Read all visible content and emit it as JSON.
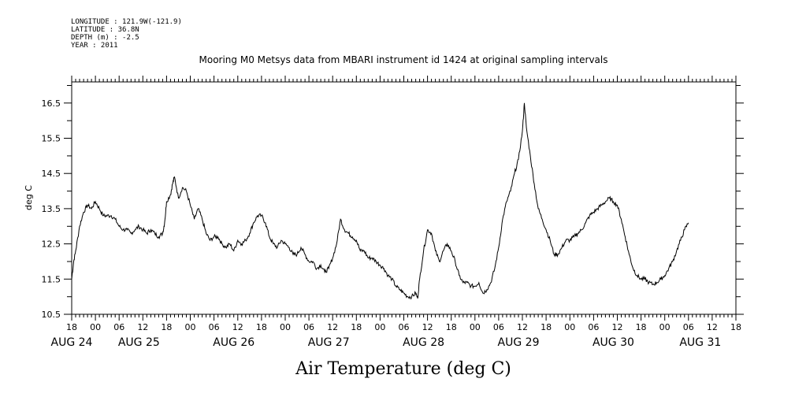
{
  "meta_lines": [
    "LONGITUDE : 121.9W(-121.9)",
    "LATITUDE : 36.8N",
    "DEPTH (m) : -2.5",
    "YEAR : 2011"
  ],
  "chart_data": {
    "type": "line",
    "title": "Mooring M0 Metsys data from MBARI instrument id 1424 at original sampling intervals",
    "xlabel": "Air Temperature (deg C)",
    "ylabel": "deg C",
    "ylim": [
      10.5,
      17.1
    ],
    "yticks": [
      10.5,
      11.5,
      12.5,
      13.5,
      14.5,
      15.5,
      16.5
    ],
    "ytick_labels": [
      "10.5",
      "11.5",
      "12.5",
      "13.5",
      "14.5",
      "15.5",
      "16.5"
    ],
    "xlim_hours": [
      18,
      186
    ],
    "x_hour_ticks": [
      18,
      24,
      30,
      36,
      42,
      48,
      54,
      60,
      66,
      72,
      78,
      84,
      90,
      96,
      102,
      108,
      114,
      120,
      126,
      132,
      138,
      144,
      150,
      156,
      162,
      168,
      174,
      180,
      186
    ],
    "x_hour_labels": [
      "18",
      "00",
      "06",
      "12",
      "18",
      "00",
      "06",
      "12",
      "18",
      "00",
      "06",
      "12",
      "18",
      "00",
      "06",
      "12",
      "18",
      "00",
      "06",
      "12",
      "18",
      "00",
      "06",
      "12",
      "18",
      "00",
      "06",
      "12",
      "18"
    ],
    "day_labels": [
      {
        "label": "AUG 24",
        "hour": 18
      },
      {
        "label": "AUG 25",
        "hour": 35
      },
      {
        "label": "AUG 26",
        "hour": 59
      },
      {
        "label": "AUG 27",
        "hour": 83
      },
      {
        "label": "AUG 28",
        "hour": 107
      },
      {
        "label": "AUG 29",
        "hour": 131
      },
      {
        "label": "AUG 30",
        "hour": 155
      },
      {
        "label": "AUG 31",
        "hour": 177
      }
    ],
    "grid": false,
    "series": [
      {
        "points": [
          [
            18,
            11.5
          ],
          [
            18.5,
            12.0
          ],
          [
            19,
            12.3
          ],
          [
            20,
            13.0
          ],
          [
            21,
            13.4
          ],
          [
            22,
            13.6
          ],
          [
            23,
            13.5
          ],
          [
            24,
            13.7
          ],
          [
            25,
            13.5
          ],
          [
            26,
            13.3
          ],
          [
            27,
            13.3
          ],
          [
            28,
            13.3
          ],
          [
            29,
            13.2
          ],
          [
            30,
            13.0
          ],
          [
            31,
            12.9
          ],
          [
            32,
            12.9
          ],
          [
            33,
            12.8
          ],
          [
            34,
            12.9
          ],
          [
            35,
            13.0
          ],
          [
            36,
            12.9
          ],
          [
            37,
            12.8
          ],
          [
            38,
            12.9
          ],
          [
            39,
            12.8
          ],
          [
            40,
            12.7
          ],
          [
            41,
            12.8
          ],
          [
            41.5,
            13.1
          ],
          [
            42,
            13.7
          ],
          [
            43,
            13.9
          ],
          [
            43.5,
            14.2
          ],
          [
            44,
            14.4
          ],
          [
            45,
            13.8
          ],
          [
            46,
            14.1
          ],
          [
            47,
            14.0
          ],
          [
            48,
            13.6
          ],
          [
            49,
            13.2
          ],
          [
            50,
            13.5
          ],
          [
            51,
            13.2
          ],
          [
            52,
            12.8
          ],
          [
            53,
            12.6
          ],
          [
            54,
            12.7
          ],
          [
            55,
            12.7
          ],
          [
            56,
            12.5
          ],
          [
            57,
            12.4
          ],
          [
            58,
            12.5
          ],
          [
            59,
            12.3
          ],
          [
            60,
            12.6
          ],
          [
            61,
            12.5
          ],
          [
            62,
            12.6
          ],
          [
            63,
            12.8
          ],
          [
            64,
            13.1
          ],
          [
            65,
            13.3
          ],
          [
            66,
            13.3
          ],
          [
            67,
            13.1
          ],
          [
            68,
            12.7
          ],
          [
            69,
            12.5
          ],
          [
            70,
            12.4
          ],
          [
            71,
            12.6
          ],
          [
            72,
            12.5
          ],
          [
            73,
            12.4
          ],
          [
            74,
            12.2
          ],
          [
            75,
            12.2
          ],
          [
            76,
            12.4
          ],
          [
            77,
            12.2
          ],
          [
            78,
            12.0
          ],
          [
            79,
            12.0
          ],
          [
            80,
            11.8
          ],
          [
            81,
            11.9
          ],
          [
            82,
            11.7
          ],
          [
            83,
            11.8
          ],
          [
            84,
            12.1
          ],
          [
            85,
            12.5
          ],
          [
            86,
            13.2
          ],
          [
            87,
            12.9
          ],
          [
            88,
            12.8
          ],
          [
            89,
            12.7
          ],
          [
            90,
            12.6
          ],
          [
            91,
            12.3
          ],
          [
            92,
            12.3
          ],
          [
            93,
            12.1
          ],
          [
            94,
            12.1
          ],
          [
            95,
            12.0
          ],
          [
            96,
            11.9
          ],
          [
            97,
            11.8
          ],
          [
            98,
            11.6
          ],
          [
            99,
            11.5
          ],
          [
            100,
            11.3
          ],
          [
            101,
            11.2
          ],
          [
            102,
            11.1
          ],
          [
            103,
            11.0
          ],
          [
            104,
            11.0
          ],
          [
            105,
            11.1
          ],
          [
            105.5,
            10.95
          ],
          [
            106,
            11.5
          ],
          [
            107,
            12.3
          ],
          [
            108,
            12.9
          ],
          [
            109,
            12.8
          ],
          [
            110,
            12.3
          ],
          [
            111,
            12.0
          ],
          [
            112,
            12.3
          ],
          [
            113,
            12.5
          ],
          [
            114,
            12.3
          ],
          [
            115,
            12.0
          ],
          [
            116,
            11.6
          ],
          [
            117,
            11.4
          ],
          [
            118,
            11.4
          ],
          [
            119,
            11.3
          ],
          [
            120,
            11.3
          ],
          [
            121,
            11.4
          ],
          [
            122,
            11.1
          ],
          [
            123,
            11.2
          ],
          [
            124,
            11.4
          ],
          [
            125,
            11.8
          ],
          [
            126,
            12.4
          ],
          [
            127,
            13.2
          ],
          [
            128,
            13.7
          ],
          [
            129,
            14.0
          ],
          [
            130,
            14.5
          ],
          [
            131,
            14.9
          ],
          [
            132,
            15.7
          ],
          [
            132.5,
            16.5
          ],
          [
            133,
            15.8
          ],
          [
            134,
            15.0
          ],
          [
            135,
            14.2
          ],
          [
            136,
            13.5
          ],
          [
            137,
            13.2
          ],
          [
            138,
            12.9
          ],
          [
            139,
            12.6
          ],
          [
            140,
            12.2
          ],
          [
            141,
            12.2
          ],
          [
            142,
            12.4
          ],
          [
            143,
            12.6
          ],
          [
            144,
            12.6
          ],
          [
            145,
            12.7
          ],
          [
            146,
            12.8
          ],
          [
            147,
            12.9
          ],
          [
            148,
            13.1
          ],
          [
            149,
            13.3
          ],
          [
            150,
            13.4
          ],
          [
            151,
            13.5
          ],
          [
            152,
            13.6
          ],
          [
            153,
            13.7
          ],
          [
            154,
            13.8
          ],
          [
            155,
            13.7
          ],
          [
            156,
            13.6
          ],
          [
            157,
            13.2
          ],
          [
            158,
            12.7
          ],
          [
            159,
            12.2
          ],
          [
            160,
            11.8
          ],
          [
            161,
            11.6
          ],
          [
            162,
            11.5
          ],
          [
            163,
            11.5
          ],
          [
            164,
            11.4
          ],
          [
            165,
            11.35
          ],
          [
            166,
            11.4
          ],
          [
            167,
            11.5
          ],
          [
            168,
            11.6
          ],
          [
            169,
            11.8
          ],
          [
            170,
            12.0
          ],
          [
            171,
            12.3
          ],
          [
            172,
            12.6
          ],
          [
            173,
            12.9
          ],
          [
            174,
            13.1
          ]
        ]
      }
    ]
  }
}
